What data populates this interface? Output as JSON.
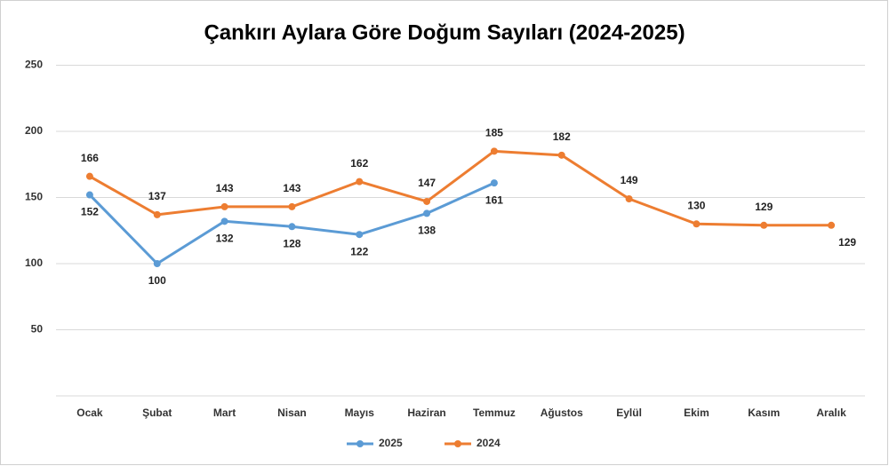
{
  "chart_data": {
    "type": "line",
    "title": "Çankırı Aylara Göre Doğum Sayıları (2024-2025)",
    "categories": [
      "Ocak",
      "Şubat",
      "Mart",
      "Nisan",
      "Mayıs",
      "Haziran",
      "Temmuz",
      "Ağustos",
      "Eylül",
      "Ekim",
      "Kasım",
      "Aralık"
    ],
    "series": [
      {
        "name": "2025",
        "color": "#5b9bd5",
        "values": [
          152,
          100,
          132,
          128,
          122,
          138,
          161,
          null,
          null,
          null,
          null,
          null
        ]
      },
      {
        "name": "2024",
        "color": "#ed7d31",
        "values": [
          166,
          137,
          143,
          143,
          162,
          147,
          185,
          182,
          149,
          130,
          129,
          129
        ]
      }
    ],
    "ylim": [
      0,
      250
    ],
    "yticks": [
      50,
      100,
      150,
      200,
      250
    ],
    "grid": true,
    "legend": "bottom"
  }
}
